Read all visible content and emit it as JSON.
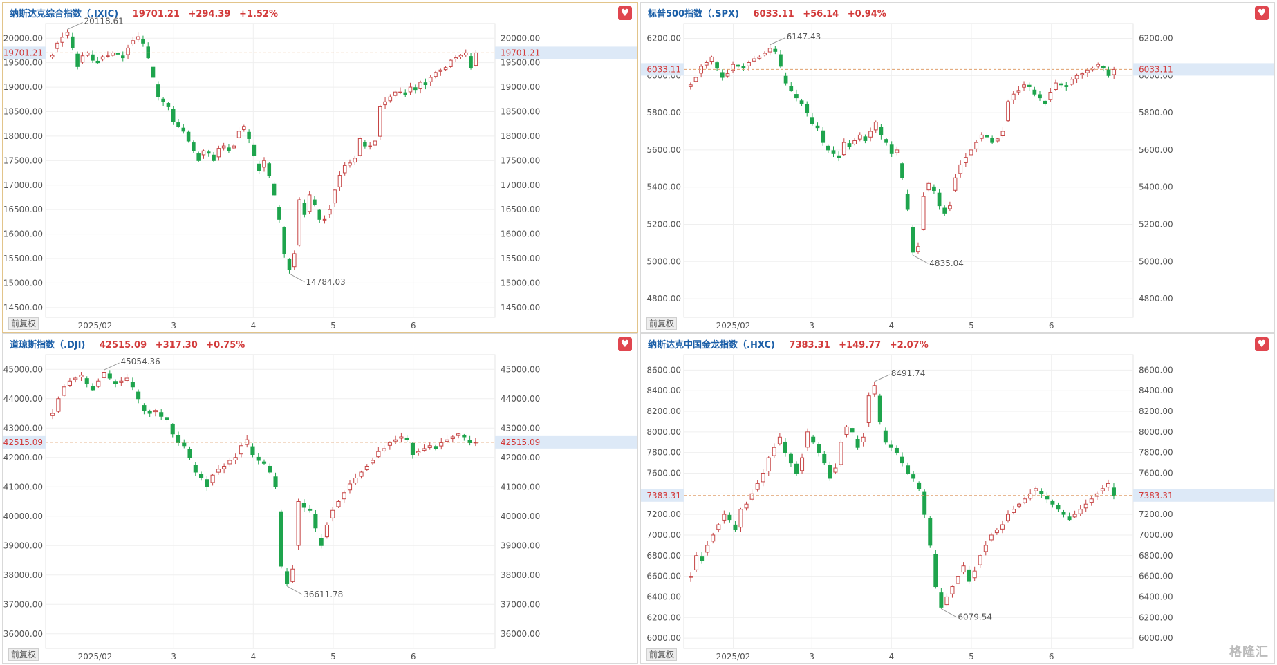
{
  "colors": {
    "up": "#c64545",
    "down": "#1ea44d",
    "dash": "#e0a06e",
    "price_label_bg": "#dde9f7",
    "grid": "#efefef"
  },
  "watermark": "格隆汇",
  "charts": [
    {
      "name": "纳斯达克综合指数（.IXIC)",
      "last": "19701.21",
      "change": "+294.39",
      "pct": "+1.52%",
      "adj_label": "前复权",
      "fav_icon": "heart-icon",
      "y_ticks": [
        "20000.00",
        "19500.00",
        "19000.00",
        "18500.00",
        "18000.00",
        "17500.00",
        "17000.00",
        "16500.00",
        "16000.00",
        "15500.00",
        "15000.00",
        "14500.00"
      ],
      "x_ticks": [
        "2025/02",
        "3",
        "4",
        "5",
        "6"
      ],
      "hi_label": "20118.61",
      "lo_label": "14784.03"
    },
    {
      "name": "标普500指数（.SPX)",
      "last": "6033.11",
      "change": "+56.14",
      "pct": "+0.94%",
      "adj_label": "前复权",
      "fav_icon": "heart-icon",
      "y_ticks": [
        "6200.00",
        "6000.00",
        "5800.00",
        "5600.00",
        "5400.00",
        "5200.00",
        "5000.00",
        "4800.00"
      ],
      "x_ticks": [
        "2025/02",
        "3",
        "4",
        "5",
        "6"
      ],
      "hi_label": "6147.43",
      "lo_label": "4835.04"
    },
    {
      "name": "道琼斯指数（.DJI)",
      "last": "42515.09",
      "change": "+317.30",
      "pct": "+0.75%",
      "adj_label": "前复权",
      "fav_icon": "heart-icon",
      "y_ticks": [
        "45000.00",
        "44000.00",
        "43000.00",
        "42000.00",
        "41000.00",
        "40000.00",
        "39000.00",
        "38000.00",
        "37000.00",
        "36000.00"
      ],
      "x_ticks": [
        "2025/02",
        "3",
        "4",
        "5",
        "6"
      ],
      "hi_label": "45054.36",
      "lo_label": "36611.78"
    },
    {
      "name": "纳斯达克中国金龙指数（.HXC)",
      "last": "7383.31",
      "change": "+149.77",
      "pct": "+2.07%",
      "adj_label": "前复权",
      "fav_icon": "heart-icon",
      "y_ticks": [
        "8600.00",
        "8400.00",
        "8200.00",
        "8000.00",
        "7800.00",
        "7600.00",
        "7400.00",
        "7200.00",
        "7000.00",
        "6800.00",
        "6600.00",
        "6400.00",
        "6200.00",
        "6000.00"
      ],
      "x_ticks": [
        "2025/02",
        "3",
        "4",
        "5",
        "6"
      ],
      "hi_label": "8491.74",
      "lo_label": "6079.54"
    }
  ],
  "chart_data": [
    {
      "type": "candlestick",
      "title": "纳斯达克综合指数（.IXIC)",
      "ylim": [
        14300,
        20300
      ],
      "last": 19701.21,
      "high_marker": 20118.61,
      "low_marker": 14784.03,
      "closes": [
        19650,
        19900,
        20020,
        20118,
        19800,
        19420,
        19640,
        19700,
        19550,
        19500,
        19620,
        19640,
        19700,
        19680,
        19600,
        19800,
        19950,
        20030,
        19900,
        19600,
        19200,
        18800,
        18700,
        18600,
        18300,
        18200,
        18100,
        17900,
        17700,
        17500,
        17700,
        17650,
        17500,
        17750,
        17800,
        17700,
        17800,
        18100,
        18200,
        17950,
        17600,
        17300,
        17500,
        17200,
        16800,
        16300,
        15600,
        15280,
        15600,
        16700,
        16400,
        16800,
        16600,
        16300,
        16300,
        16500,
        16900,
        17200,
        17400,
        17450,
        17550,
        17950,
        17800,
        17800,
        17900,
        18600,
        18700,
        18800,
        18900,
        18900,
        18850,
        19000,
        18950,
        19100,
        19050,
        19200,
        19300,
        19350,
        19400,
        19550,
        19600,
        19650,
        19700,
        19400,
        19701
      ]
    },
    {
      "type": "candlestick",
      "title": "标普500指数（.SPX)",
      "ylim": [
        4700,
        6280
      ],
      "last": 6033.11,
      "high_marker": 6147.43,
      "low_marker": 4835.04,
      "closes": [
        5950,
        5990,
        6050,
        6070,
        6100,
        6040,
        5990,
        6010,
        6060,
        6050,
        6040,
        6070,
        6090,
        6100,
        6120,
        6147,
        6130,
        6050,
        5960,
        5920,
        5880,
        5850,
        5800,
        5740,
        5720,
        5640,
        5600,
        5580,
        5560,
        5640,
        5620,
        5650,
        5680,
        5650,
        5700,
        5750,
        5680,
        5640,
        5580,
        5600,
        5450,
        5280,
        5050,
        5080,
        5350,
        5420,
        5380,
        5300,
        5260,
        5300,
        5450,
        5520,
        5560,
        5600,
        5640,
        5680,
        5670,
        5640,
        5660,
        5700,
        5860,
        5900,
        5920,
        5950,
        5940,
        5900,
        5880,
        5850,
        5910,
        5960,
        5950,
        5940,
        5980,
        6000,
        6010,
        6030,
        6040,
        6060,
        6040,
        6000,
        6033
      ]
    },
    {
      "type": "candlestick",
      "title": "道琼斯指数（.DJI)",
      "ylim": [
        35500,
        45500
      ],
      "last": 42515.09,
      "high_marker": 45054.36,
      "low_marker": 36611.78,
      "closes": [
        43500,
        44000,
        44400,
        44600,
        44700,
        44800,
        44500,
        44300,
        44600,
        44900,
        44700,
        44500,
        44600,
        44700,
        44400,
        44000,
        43600,
        43500,
        43600,
        43400,
        43300,
        42800,
        42500,
        42400,
        42000,
        41500,
        41300,
        41000,
        41400,
        41600,
        41700,
        41900,
        42000,
        42400,
        42600,
        42100,
        41900,
        41800,
        41500,
        41000,
        38300,
        37700,
        38200,
        40500,
        40300,
        40200,
        39600,
        39000,
        39700,
        40200,
        40500,
        40800,
        41100,
        41300,
        41500,
        41700,
        41900,
        42200,
        42300,
        42500,
        42600,
        42700,
        42600,
        42100,
        42200,
        42300,
        42400,
        42300,
        42500,
        42600,
        42700,
        42800,
        42700,
        42500,
        42515
      ]
    },
    {
      "type": "candlestick",
      "title": "纳斯达克中国金龙指数（.HXC)",
      "ylim": [
        5900,
        8750
      ],
      "last": 7383.31,
      "high_marker": 8491.74,
      "low_marker": 6079.54,
      "closes": [
        6600,
        6800,
        6750,
        6900,
        7000,
        7100,
        7200,
        7150,
        7050,
        7250,
        7300,
        7400,
        7500,
        7600,
        7750,
        7850,
        7950,
        7800,
        7700,
        7600,
        7750,
        8000,
        7900,
        7800,
        7700,
        7550,
        7650,
        7900,
        8050,
        8000,
        7850,
        7950,
        8350,
        8450,
        8100,
        7900,
        7850,
        7800,
        7700,
        7600,
        7550,
        7450,
        7200,
        6900,
        6500,
        6300,
        6400,
        6500,
        6600,
        6700,
        6550,
        6650,
        6800,
        6900,
        7000,
        7050,
        7100,
        7200,
        7250,
        7300,
        7350,
        7400,
        7450,
        7400,
        7350,
        7300,
        7250,
        7200,
        7150,
        7200,
        7250,
        7300,
        7350,
        7400,
        7450,
        7500,
        7383
      ]
    }
  ]
}
